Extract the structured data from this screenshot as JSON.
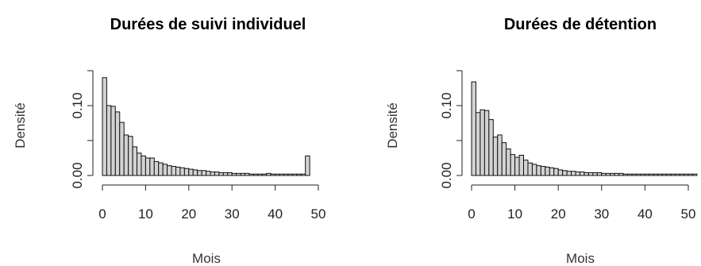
{
  "chart_data": [
    {
      "type": "bar",
      "title": "Durées de suivi individuel",
      "xlabel": "Mois",
      "ylabel": "Densité",
      "xlim": [
        0,
        48
      ],
      "ylim": [
        0,
        0.15
      ],
      "x_ticks": [
        "0",
        "10",
        "20",
        "30",
        "40",
        "50"
      ],
      "y_ticks": [
        "0.00",
        "0.10"
      ],
      "bin_width": 1,
      "bin_start": 0,
      "values": [
        0.14,
        0.1,
        0.099,
        0.091,
        0.076,
        0.058,
        0.056,
        0.041,
        0.032,
        0.028,
        0.025,
        0.025,
        0.02,
        0.018,
        0.016,
        0.014,
        0.013,
        0.012,
        0.011,
        0.01,
        0.009,
        0.008,
        0.007,
        0.007,
        0.006,
        0.005,
        0.005,
        0.004,
        0.004,
        0.004,
        0.003,
        0.003,
        0.003,
        0.003,
        0.002,
        0.002,
        0.002,
        0.002,
        0.003,
        0.002,
        0.002,
        0.002,
        0.002,
        0.002,
        0.002,
        0.002,
        0.002,
        0.028
      ]
    },
    {
      "type": "bar",
      "title": "Durées de détention",
      "xlabel": "Mois",
      "ylabel": "Densité",
      "xlim": [
        0,
        52
      ],
      "ylim": [
        0,
        0.15
      ],
      "x_ticks": [
        "0",
        "10",
        "20",
        "30",
        "40",
        "50"
      ],
      "y_ticks": [
        "0.00",
        "0.10"
      ],
      "bin_width": 1,
      "bin_start": 0,
      "values": [
        0.134,
        0.09,
        0.094,
        0.093,
        0.08,
        0.055,
        0.058,
        0.047,
        0.038,
        0.03,
        0.026,
        0.029,
        0.022,
        0.018,
        0.016,
        0.014,
        0.013,
        0.012,
        0.011,
        0.01,
        0.008,
        0.007,
        0.006,
        0.006,
        0.005,
        0.005,
        0.004,
        0.004,
        0.004,
        0.004,
        0.003,
        0.003,
        0.003,
        0.003,
        0.003,
        0.002,
        0.002,
        0.002,
        0.002,
        0.002,
        0.002,
        0.002,
        0.002,
        0.002,
        0.002,
        0.002,
        0.002,
        0.002,
        0.002,
        0.002,
        0.002,
        0.002
      ]
    }
  ]
}
